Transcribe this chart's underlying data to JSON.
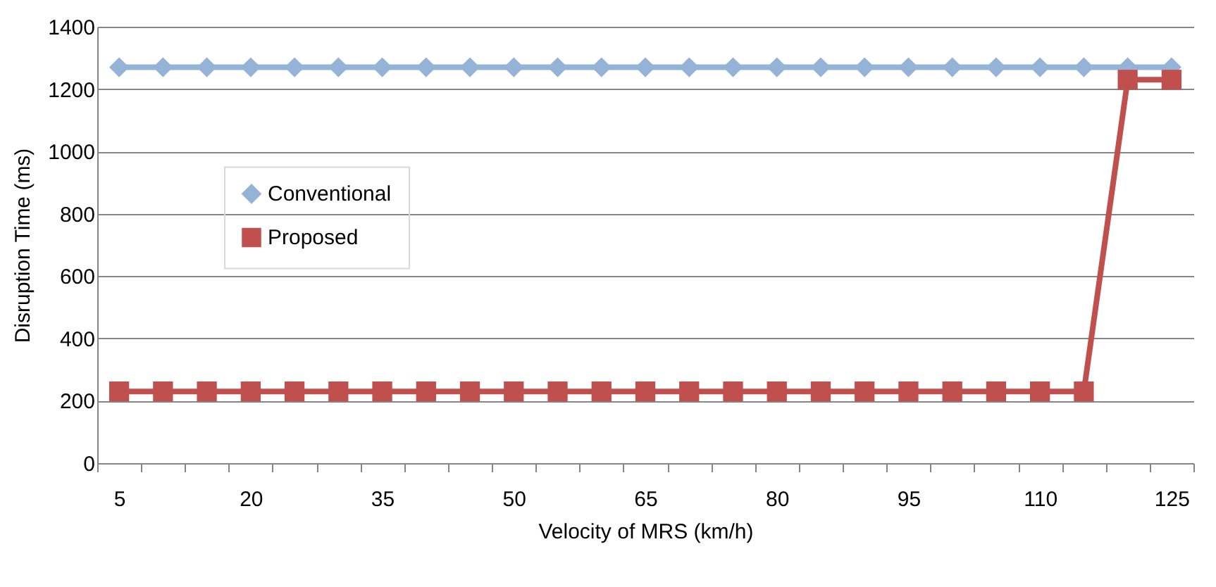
{
  "chart_data": {
    "type": "line",
    "xlabel": "Velocity of MRS (km/h)",
    "ylabel": "Disruption Time (ms)",
    "categories": [
      "5",
      null,
      null,
      "20",
      null,
      null,
      "35",
      null,
      null,
      "50",
      null,
      null,
      "65",
      null,
      null,
      "80",
      null,
      null,
      "95",
      null,
      null,
      "110",
      null,
      null,
      "125"
    ],
    "series": [
      {
        "name": "Conventional",
        "color": "#95b3d7",
        "marker": "diamond",
        "values": [
          1270,
          1270,
          1270,
          1270,
          1270,
          1270,
          1270,
          1270,
          1270,
          1270,
          1270,
          1270,
          1270,
          1270,
          1270,
          1270,
          1270,
          1270,
          1270,
          1270,
          1270,
          1270,
          1270,
          1270,
          1270
        ]
      },
      {
        "name": "Proposed",
        "color": "#c0504d",
        "marker": "square",
        "values": [
          230,
          230,
          230,
          230,
          230,
          230,
          230,
          230,
          230,
          230,
          230,
          230,
          230,
          230,
          230,
          230,
          230,
          230,
          230,
          230,
          230,
          230,
          230,
          1230,
          1230
        ]
      }
    ],
    "ylim": [
      0,
      1400
    ],
    "yticks": [
      0,
      200,
      400,
      600,
      800,
      1000,
      1200,
      1400
    ],
    "grid": "y",
    "legend": "left",
    "line_style": "solid"
  }
}
